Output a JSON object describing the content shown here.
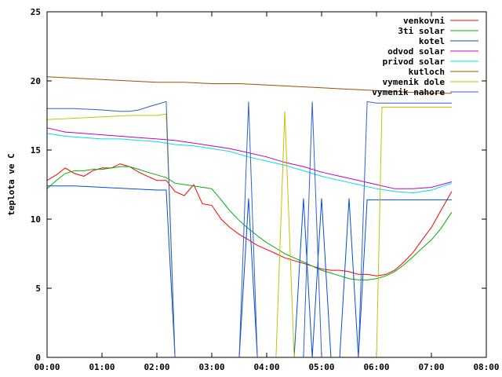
{
  "chart_data": {
    "type": "line",
    "title": "",
    "xlabel": "",
    "ylabel": "teplota ve C",
    "x_ticks": [
      "00:00",
      "01:00",
      "02:00",
      "03:00",
      "04:00",
      "05:00",
      "06:00",
      "07:00",
      "08:00"
    ],
    "y_ticks": [
      "0",
      "5",
      "10",
      "15",
      "20",
      "25"
    ],
    "xlim": [
      0,
      8
    ],
    "ylim": [
      0,
      25
    ],
    "grid": false,
    "legend_position": "top-right",
    "x_units": "hours",
    "series": [
      {
        "name": "venkovni",
        "color": "#ff0000",
        "x": [
          0,
          0.17,
          0.33,
          0.5,
          0.67,
          0.83,
          1.0,
          1.17,
          1.33,
          1.5,
          1.67,
          1.83,
          2.0,
          2.17,
          2.33,
          2.5,
          2.67,
          2.83,
          3.0,
          3.17,
          3.33,
          3.5,
          3.67,
          3.83,
          4.0,
          4.17,
          4.33,
          4.5,
          4.67,
          4.83,
          5.0,
          5.17,
          5.33,
          5.5,
          5.67,
          5.83,
          6.0,
          6.17,
          6.33,
          6.5,
          6.67,
          6.83,
          7.0,
          7.17,
          7.37
        ],
        "y": [
          12.8,
          13.2,
          13.7,
          13.3,
          13.1,
          13.5,
          13.7,
          13.7,
          14.0,
          13.8,
          13.4,
          13.1,
          12.8,
          12.8,
          12.0,
          11.7,
          12.5,
          11.1,
          11.0,
          10.0,
          9.4,
          8.9,
          8.5,
          8.1,
          7.8,
          7.5,
          7.2,
          7.0,
          6.8,
          6.6,
          6.4,
          6.3,
          6.3,
          6.2,
          6.0,
          6.0,
          5.9,
          6.0,
          6.3,
          6.9,
          7.6,
          8.5,
          9.4,
          10.6,
          12.0
        ]
      },
      {
        "name": "3ti solar",
        "color": "#00b000",
        "x": [
          0,
          0.17,
          0.33,
          0.5,
          0.67,
          0.83,
          1.0,
          1.17,
          1.33,
          1.5,
          1.67,
          1.83,
          2.0,
          2.17,
          2.33,
          2.5,
          2.67,
          2.83,
          3.0,
          3.17,
          3.33,
          3.5,
          3.67,
          3.83,
          4.0,
          4.17,
          4.33,
          4.5,
          4.67,
          4.83,
          5.0,
          5.17,
          5.33,
          5.5,
          5.67,
          5.83,
          6.0,
          6.17,
          6.33,
          6.5,
          6.67,
          6.83,
          7.0,
          7.17,
          7.37
        ],
        "y": [
          12.2,
          12.8,
          13.3,
          13.5,
          13.5,
          13.6,
          13.6,
          13.7,
          13.8,
          13.8,
          13.6,
          13.4,
          13.2,
          13.0,
          12.6,
          12.5,
          12.4,
          12.3,
          12.2,
          11.4,
          10.6,
          9.9,
          9.3,
          8.8,
          8.3,
          7.9,
          7.5,
          7.2,
          6.9,
          6.6,
          6.3,
          6.1,
          5.9,
          5.7,
          5.6,
          5.6,
          5.7,
          5.9,
          6.2,
          6.7,
          7.3,
          7.9,
          8.5,
          9.3,
          10.5
        ]
      },
      {
        "name": "kotel",
        "color": "#0050d0",
        "x": [
          0,
          0.5,
          1.0,
          1.5,
          2.0,
          2.17,
          2.33,
          3.5,
          3.67,
          3.83,
          4.5,
          4.67,
          4.83,
          5.0,
          5.17,
          5.33,
          5.5,
          5.67,
          5.83,
          6.0,
          6.5,
          7.0,
          7.37
        ],
        "y": [
          12.4,
          12.4,
          12.3,
          12.2,
          12.1,
          12.1,
          0,
          0,
          11.5,
          0,
          0,
          11.5,
          0,
          11.5,
          0,
          0,
          11.5,
          0,
          11.4,
          11.4,
          11.4,
          11.4,
          11.4
        ]
      },
      {
        "name": "odvod solar",
        "color": "#c000c0",
        "x": [
          0,
          0.33,
          0.67,
          1.0,
          1.33,
          1.67,
          2.0,
          2.33,
          2.67,
          3.0,
          3.33,
          3.67,
          4.0,
          4.33,
          4.67,
          5.0,
          5.33,
          5.67,
          6.0,
          6.33,
          6.67,
          7.0,
          7.37
        ],
        "y": [
          16.6,
          16.3,
          16.2,
          16.1,
          16.0,
          15.9,
          15.8,
          15.7,
          15.5,
          15.3,
          15.1,
          14.8,
          14.5,
          14.1,
          13.8,
          13.4,
          13.1,
          12.8,
          12.5,
          12.2,
          12.2,
          12.3,
          12.7
        ]
      },
      {
        "name": "privod solar",
        "color": "#00e0e0",
        "x": [
          0,
          0.33,
          0.67,
          1.0,
          1.33,
          1.67,
          2.0,
          2.33,
          2.67,
          3.0,
          3.33,
          3.67,
          4.0,
          4.33,
          4.67,
          5.0,
          5.33,
          5.67,
          6.0,
          6.33,
          6.67,
          7.0,
          7.37
        ],
        "y": [
          16.2,
          16.0,
          15.9,
          15.8,
          15.8,
          15.7,
          15.6,
          15.4,
          15.3,
          15.1,
          14.9,
          14.5,
          14.2,
          13.9,
          13.5,
          13.1,
          12.8,
          12.5,
          12.2,
          12.0,
          11.9,
          12.1,
          12.6
        ]
      },
      {
        "name": "kutloch",
        "color": "#a05000",
        "x": [
          0,
          0.5,
          1.0,
          1.5,
          2.0,
          2.5,
          3.0,
          3.5,
          4.0,
          4.5,
          5.0,
          5.5,
          6.0,
          6.5,
          7.0,
          7.37
        ],
        "y": [
          20.3,
          20.2,
          20.1,
          20.0,
          19.9,
          19.9,
          19.8,
          19.8,
          19.7,
          19.6,
          19.5,
          19.4,
          19.3,
          19.2,
          19.1,
          19.1
        ]
      },
      {
        "name": "vymenik dole",
        "color": "#c8c000",
        "x": [
          0,
          0.5,
          1.0,
          1.5,
          2.0,
          2.17,
          2.33,
          4.17,
          4.33,
          4.5,
          5.5,
          6.0,
          6.1,
          7.37
        ],
        "y": [
          17.2,
          17.3,
          17.4,
          17.5,
          17.5,
          17.6,
          0,
          0,
          17.8,
          0,
          0,
          0,
          18.1,
          18.1
        ]
      },
      {
        "name": "vymenik nahore",
        "color": "#3060d0",
        "x": [
          0,
          0.5,
          1.0,
          1.33,
          1.5,
          1.67,
          1.83,
          2.0,
          2.17,
          2.33,
          3.5,
          3.67,
          3.83,
          4.67,
          4.83,
          5.0,
          5.5,
          5.67,
          5.83,
          6.0,
          6.5,
          7.0,
          7.37
        ],
        "y": [
          18.0,
          18.0,
          17.9,
          17.8,
          17.8,
          17.9,
          18.1,
          18.3,
          18.5,
          0,
          0,
          18.5,
          0,
          0,
          18.5,
          0,
          0,
          0,
          18.5,
          18.4,
          18.4,
          18.4,
          18.4
        ]
      }
    ]
  }
}
